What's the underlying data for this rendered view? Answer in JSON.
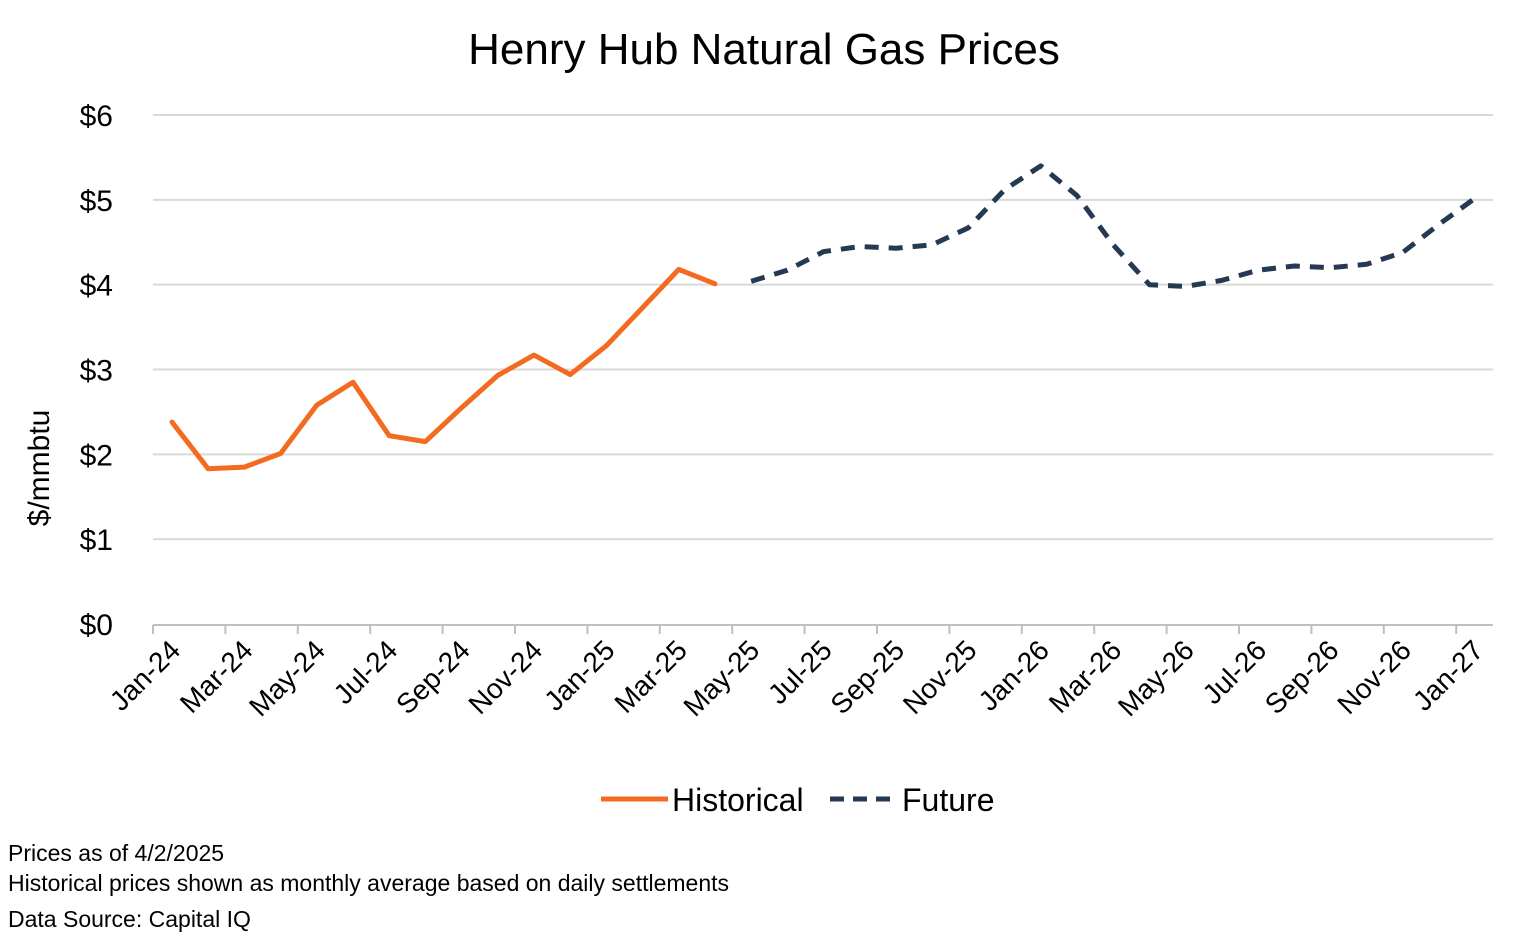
{
  "chart_data": {
    "type": "line",
    "title": "Henry Hub Natural Gas Prices",
    "ylabel": "$/mmbtu",
    "xlabel": "",
    "ylim": [
      0,
      6
    ],
    "yticks": [
      0,
      1,
      2,
      3,
      4,
      5,
      6
    ],
    "ytick_labels": [
      "$0",
      "$1",
      "$2",
      "$3",
      "$4",
      "$5",
      "$6"
    ],
    "grid": true,
    "legend_position": "bottom",
    "x_months": [
      "Jan-24",
      "Feb-24",
      "Mar-24",
      "Apr-24",
      "May-24",
      "Jun-24",
      "Jul-24",
      "Aug-24",
      "Sep-24",
      "Oct-24",
      "Nov-24",
      "Dec-24",
      "Jan-25",
      "Feb-25",
      "Mar-25",
      "Apr-25",
      "May-25",
      "Jun-25",
      "Jul-25",
      "Aug-25",
      "Sep-25",
      "Oct-25",
      "Nov-25",
      "Dec-25",
      "Jan-26",
      "Feb-26",
      "Mar-26",
      "Apr-26",
      "May-26",
      "Jun-26",
      "Jul-26",
      "Aug-26",
      "Sep-26",
      "Oct-26",
      "Nov-26",
      "Dec-26",
      "Jan-27"
    ],
    "x_tick_labels": [
      "Jan-24",
      "Mar-24",
      "May-24",
      "Jul-24",
      "Sep-24",
      "Nov-24",
      "Jan-25",
      "Mar-25",
      "May-25",
      "Jul-25",
      "Sep-25",
      "Nov-25",
      "Jan-26",
      "Mar-26",
      "May-26",
      "Jul-26",
      "Sep-26",
      "Nov-26",
      "Jan-27"
    ],
    "series": [
      {
        "name": "Historical",
        "color": "#F26B21",
        "style": "solid",
        "start_index": 0,
        "values": [
          2.38,
          1.83,
          1.85,
          2.01,
          2.58,
          2.85,
          2.22,
          2.15,
          2.55,
          2.93,
          3.17,
          2.94,
          3.28,
          3.73,
          4.18,
          4.01
        ]
      },
      {
        "name": "Future",
        "color": "#253A52",
        "style": "dashed",
        "start_index": 16,
        "values": [
          4.04,
          4.17,
          4.39,
          4.45,
          4.43,
          4.47,
          4.67,
          5.12,
          5.4,
          5.05,
          4.47,
          4.0,
          3.98,
          4.05,
          4.17,
          4.22,
          4.2,
          4.24,
          4.38,
          4.71,
          5.02
        ]
      }
    ]
  },
  "notes": {
    "line1": "Prices as of 4/2/2025",
    "line2": "Historical prices shown as monthly average based on daily settlements",
    "source": "Data Source: Capital IQ"
  }
}
